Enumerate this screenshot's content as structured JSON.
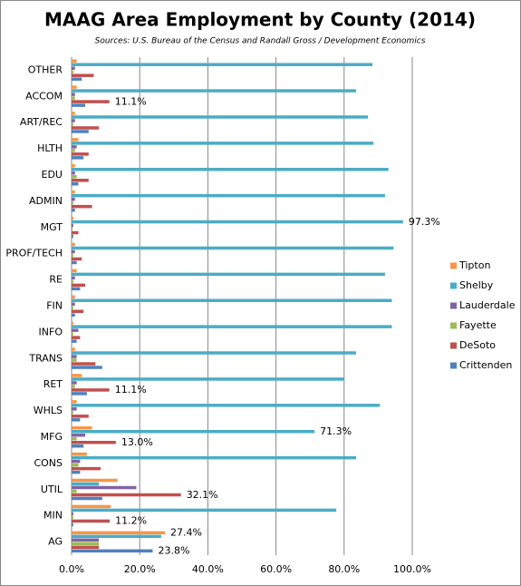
{
  "chart_data": {
    "type": "hbar",
    "title": "MAAG Area Employment by County (2014)",
    "subtitle": "Sources: U.S. Bureau of the Census and Randall Gross / Development Economics",
    "categories": [
      "OTHER",
      "ACCOM",
      "ART/REC",
      "HLTH",
      "EDU",
      "ADMIN",
      "MGT",
      "PROF/TECH",
      "RE",
      "FIN",
      "INFO",
      "TRANS",
      "RET",
      "WHLS",
      "MFG",
      "CONS",
      "UTIL",
      "MIN",
      "AG"
    ],
    "series": [
      {
        "name": "Tipton",
        "color": "#f79646",
        "values": [
          1.5,
          1.5,
          1,
          2,
          1,
          1,
          0.5,
          1,
          1.5,
          1,
          0.5,
          1,
          3,
          1.5,
          6,
          4.5,
          13.5,
          11.5,
          27.4
        ],
        "value_labels": [
          null,
          null,
          null,
          null,
          null,
          null,
          null,
          null,
          null,
          null,
          null,
          null,
          null,
          null,
          null,
          null,
          null,
          null,
          "27.4%"
        ]
      },
      {
        "name": "Shelby",
        "color": "#4bacc6",
        "values": [
          88.3,
          83.5,
          87,
          88.6,
          93,
          92,
          97.3,
          94.5,
          92,
          94,
          94,
          83.5,
          80,
          90.5,
          71.3,
          83.5,
          8,
          77.7,
          26.3
        ],
        "value_labels": [
          null,
          null,
          null,
          null,
          null,
          null,
          "97.3%",
          null,
          null,
          null,
          null,
          null,
          null,
          null,
          "71.3%",
          null,
          null,
          null,
          null
        ]
      },
      {
        "name": "Lauderdale",
        "color": "#8064a2",
        "values": [
          1,
          1,
          1,
          1.5,
          1,
          1,
          0.5,
          1,
          1,
          1,
          2,
          1.5,
          1.5,
          1.5,
          4,
          2.5,
          19,
          0.5,
          8
        ]
      },
      {
        "name": "Fayette",
        "color": "#9bbb59",
        "values": [
          0.5,
          1,
          0.5,
          1,
          1.5,
          0.5,
          0.3,
          0.5,
          0.5,
          0.5,
          0.5,
          1.5,
          1,
          0.5,
          1.5,
          2,
          1.5,
          0.5,
          8
        ]
      },
      {
        "name": "DeSoto",
        "color": "#c0504d",
        "values": [
          6.5,
          11.1,
          8,
          5,
          5,
          6,
          2,
          3,
          4,
          3.5,
          2.5,
          7,
          11.1,
          5,
          13.0,
          8.5,
          32.1,
          11.2,
          8
        ],
        "value_labels": [
          null,
          "11.1%",
          null,
          null,
          null,
          null,
          null,
          null,
          null,
          null,
          null,
          null,
          "11.1%",
          null,
          "13.0%",
          null,
          "32.1%",
          "11.2%",
          null
        ]
      },
      {
        "name": "Crittenden",
        "color": "#4f81bd",
        "values": [
          3,
          4,
          5,
          3.5,
          2,
          1,
          0.5,
          1.5,
          2.5,
          1,
          1.5,
          9,
          4.5,
          2.5,
          3.5,
          2.5,
          9,
          0.5,
          23.8
        ],
        "value_labels": [
          null,
          null,
          null,
          null,
          null,
          null,
          null,
          null,
          null,
          null,
          null,
          null,
          null,
          null,
          null,
          null,
          null,
          null,
          "23.8%"
        ]
      }
    ],
    "xlim": [
      0,
      100
    ],
    "xticks": [
      {
        "value": 0,
        "label": "0.0%"
      },
      {
        "value": 20,
        "label": "20.0%"
      },
      {
        "value": 40,
        "label": "40.0%"
      },
      {
        "value": 60,
        "label": "60.0%"
      },
      {
        "value": 80,
        "label": "80.0%"
      },
      {
        "value": 100,
        "label": "100.0%"
      }
    ],
    "grid": true,
    "legend": "right"
  }
}
